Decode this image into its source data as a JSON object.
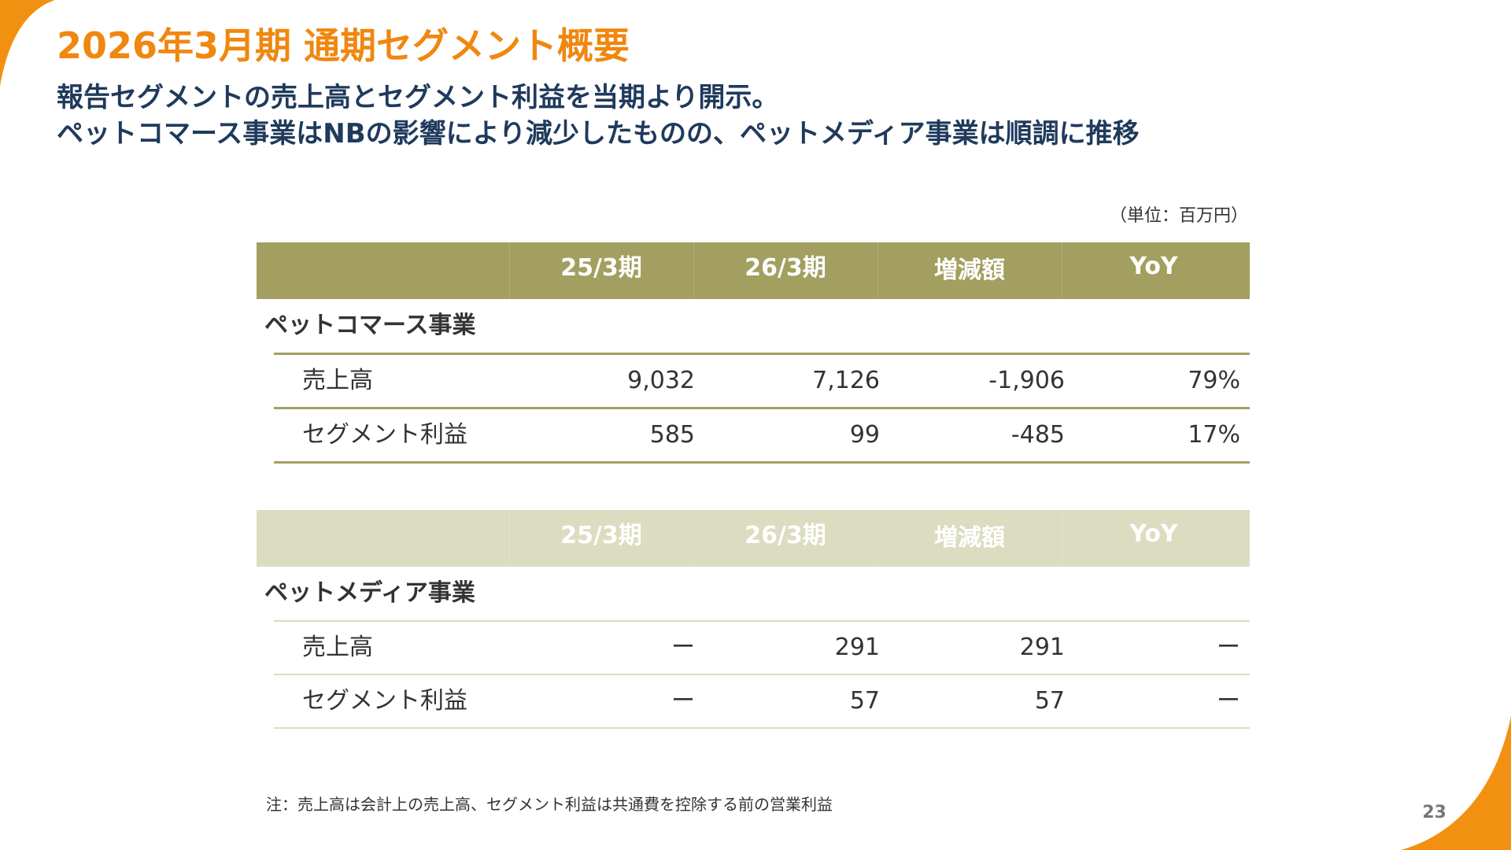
{
  "slide": {
    "title": "2026年3月期 通期セグメント概要",
    "subtitle_line1": "報告セグメントの売上高とセグメント利益を当期より開示。",
    "subtitle_line2": "ペットコマース事業はNBの影響により減少したものの、ペットメディア事業は順調に推移",
    "unit": "（単位：百万円）",
    "note": "注：売上高は会計上の売上高、セグメント利益は共通費を控除する前の営業利益",
    "page_number": "23"
  },
  "colors": {
    "accent_orange": "#f0870f",
    "navy": "#1f3a5c",
    "olive": "#a29f60",
    "olive_light": "#dcdcc1"
  },
  "tables": [
    {
      "headers": [
        "25/3期",
        "26/3期",
        "増減額",
        "YoY"
      ],
      "segment": "ペットコマース事業",
      "rows": [
        {
          "label": "売上高",
          "values": [
            "9,032",
            "7,126",
            "-1,906",
            "79%"
          ]
        },
        {
          "label": "セグメント利益",
          "values": [
            "585",
            "99",
            "-485",
            "17%"
          ]
        }
      ]
    },
    {
      "headers": [
        "25/3期",
        "26/3期",
        "増減額",
        "YoY"
      ],
      "segment": "ペットメディア事業",
      "rows": [
        {
          "label": "売上高",
          "values": [
            "ー",
            "291",
            "291",
            "ー"
          ]
        },
        {
          "label": "セグメント利益",
          "values": [
            "ー",
            "57",
            "57",
            "ー"
          ]
        }
      ]
    }
  ]
}
